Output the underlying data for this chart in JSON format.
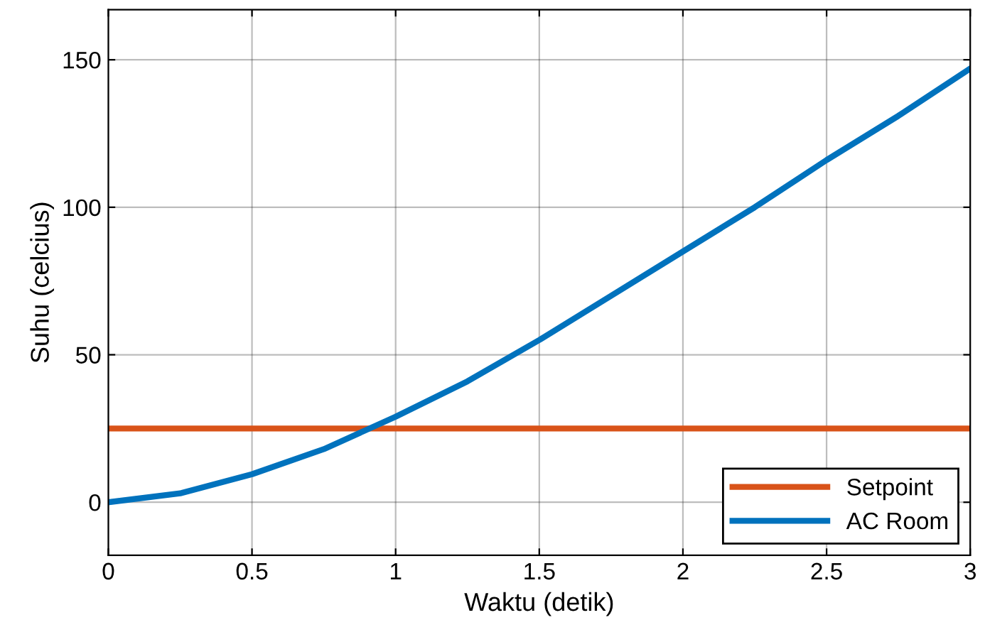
{
  "chart_data": {
    "type": "line",
    "xlabel": "Waktu (detik)",
    "ylabel": "Suhu (celcius)",
    "xlim": [
      0,
      3
    ],
    "xticks": [
      0,
      0.5,
      1,
      1.5,
      2,
      2.5,
      3
    ],
    "ylim": [
      -18,
      167
    ],
    "yticks": [
      0,
      50,
      100,
      150
    ],
    "grid": true,
    "legend": "bottom right",
    "series": [
      {
        "name": "Setpoint",
        "color": "#d95319",
        "x": [
          0,
          3
        ],
        "values": [
          25,
          25
        ]
      },
      {
        "name": "AC Room",
        "color": "#0072bd",
        "x": [
          0,
          0.25,
          0.5,
          0.75,
          1,
          1.25,
          1.5,
          1.75,
          2,
          2.25,
          2.5,
          2.75,
          3
        ],
        "values": [
          0,
          3,
          9.5,
          18,
          29,
          41,
          55,
          70,
          85,
          100,
          116,
          131,
          147
        ]
      }
    ]
  }
}
